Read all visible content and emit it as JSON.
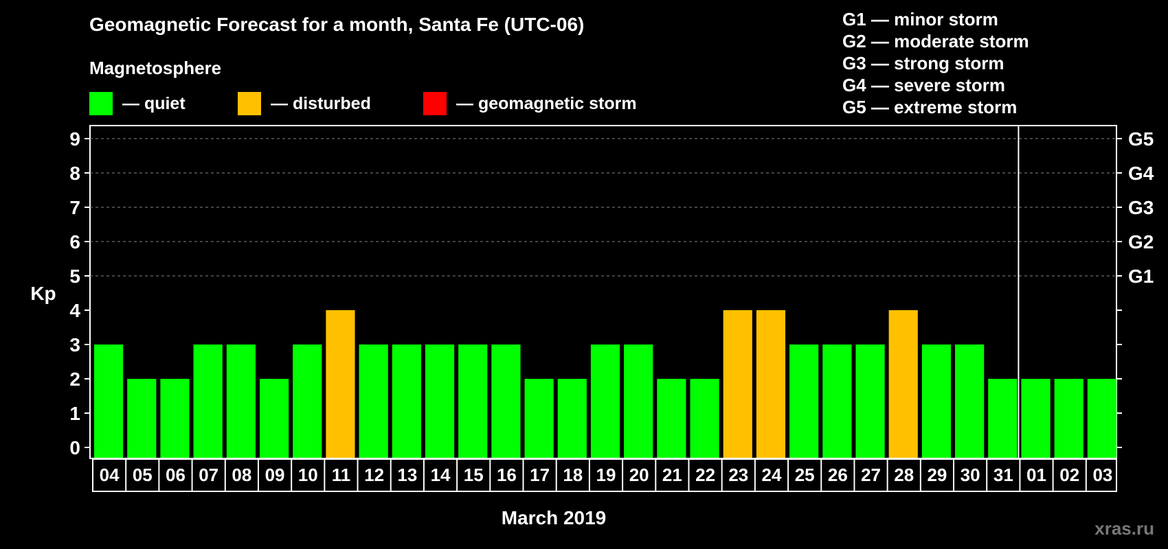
{
  "title": "Geomagnetic Forecast for a month, Santa Fe (UTC-06)",
  "subtitle": "Magnetosphere",
  "legend": [
    {
      "color": "#00ff00",
      "label": "— quiet"
    },
    {
      "color": "#ffc000",
      "label": "— disturbed"
    },
    {
      "color": "#ff0000",
      "label": "— geomagnetic storm"
    }
  ],
  "g_legend": [
    "G1 — minor storm",
    "G2 — moderate storm",
    "G3 — strong storm",
    "G4 — severe storm",
    "G5 — extreme storm"
  ],
  "watermark": "xras.ru",
  "chart_data": {
    "type": "bar",
    "title": "Geomagnetic Forecast for a month, Santa Fe (UTC-06)",
    "xlabel": "March 2019",
    "ylabel": "Kp",
    "ylim": [
      0,
      9
    ],
    "yticks": [
      "0",
      "1",
      "2",
      "3",
      "4",
      "5",
      "6",
      "7",
      "8",
      "9"
    ],
    "right_ticks": [
      {
        "kp": 5,
        "label": "G1"
      },
      {
        "kp": 6,
        "label": "G2"
      },
      {
        "kp": 7,
        "label": "G3"
      },
      {
        "kp": 8,
        "label": "G4"
      },
      {
        "kp": 9,
        "label": "G5"
      }
    ],
    "categories": [
      "04",
      "05",
      "06",
      "07",
      "08",
      "09",
      "10",
      "11",
      "12",
      "13",
      "14",
      "15",
      "16",
      "17",
      "18",
      "19",
      "20",
      "21",
      "22",
      "23",
      "24",
      "25",
      "26",
      "27",
      "28",
      "29",
      "30",
      "31",
      "01",
      "02",
      "03"
    ],
    "values": [
      3,
      2,
      2,
      3,
      3,
      2,
      3,
      4,
      3,
      3,
      3,
      3,
      3,
      2,
      2,
      3,
      3,
      2,
      2,
      4,
      4,
      3,
      3,
      3,
      4,
      3,
      3,
      2,
      2,
      2,
      2
    ],
    "colors": {
      "quiet": "#00ff00",
      "disturbed": "#ffc000",
      "storm": "#ff0000"
    },
    "grid": true,
    "month_divider_after": "31"
  }
}
